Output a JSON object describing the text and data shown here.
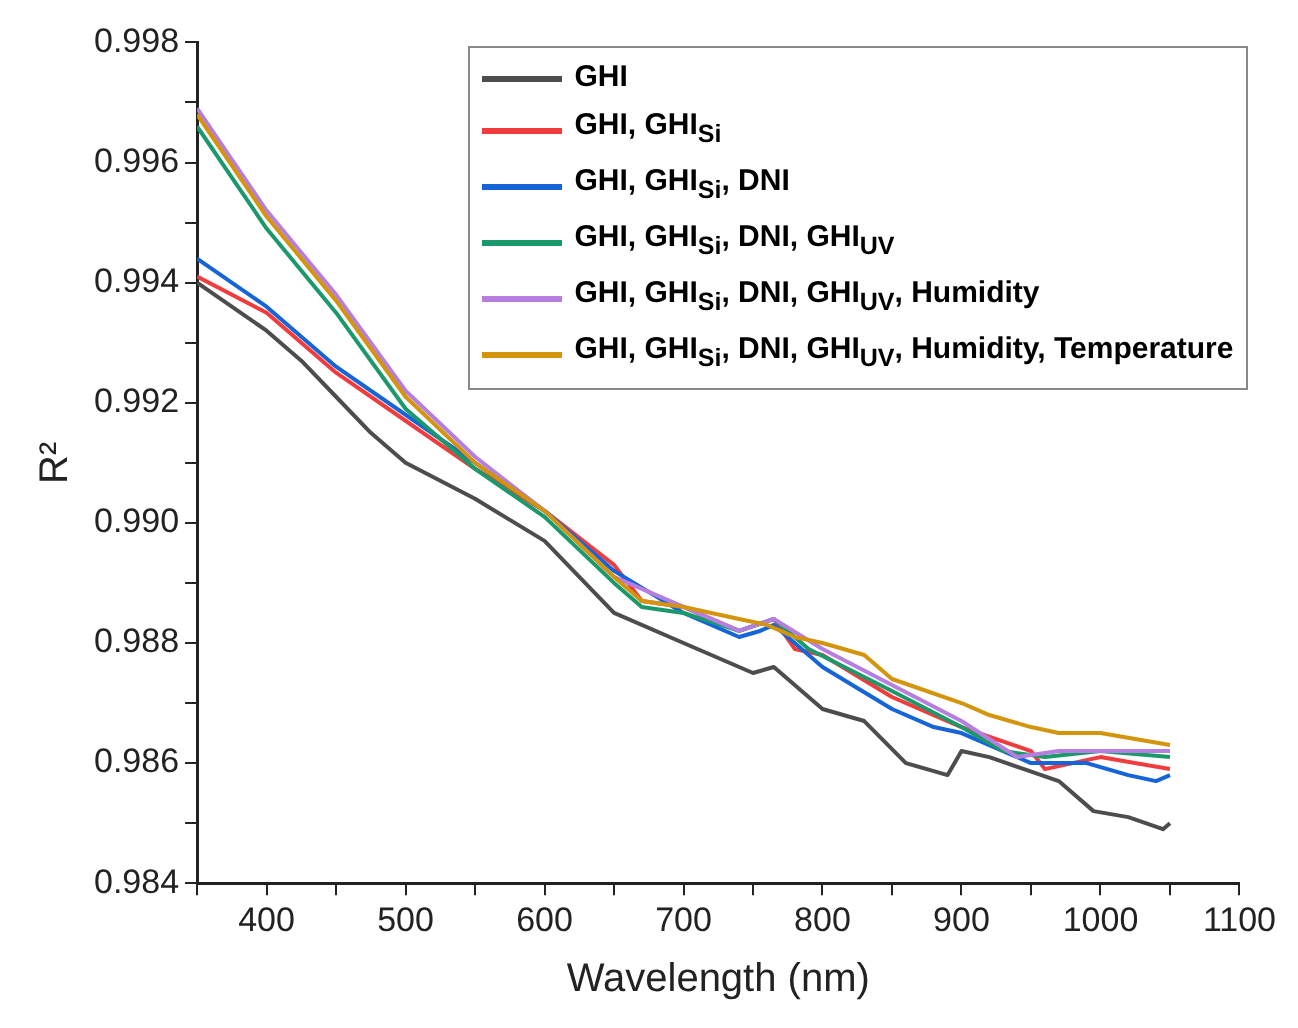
{
  "chart_data": {
    "type": "line",
    "xlabel": "Wavelength (nm)",
    "ylabel": "R²",
    "xlim": [
      350,
      1100
    ],
    "xticks": [
      {
        "value": 350,
        "label": null
      },
      400,
      {
        "value": 450,
        "label": null
      },
      500,
      {
        "value": 550,
        "label": null
      },
      600,
      {
        "value": 650,
        "label": null
      },
      700,
      {
        "value": 750,
        "label": null
      },
      800,
      {
        "value": 850,
        "label": null
      },
      900,
      {
        "value": 950,
        "label": null
      },
      1000,
      {
        "value": 1050,
        "label": null
      },
      1100
    ],
    "ylim": [
      0.984,
      0.998
    ],
    "yticks": [
      0.984,
      {
        "value": 0.985,
        "label": null
      },
      0.986,
      {
        "value": 0.987,
        "label": null
      },
      0.988,
      {
        "value": 0.989,
        "label": null
      },
      {
        "value": 0.99,
        "label": "0.990"
      },
      {
        "value": 0.991,
        "label": null
      },
      0.992,
      {
        "value": 0.993,
        "label": null
      },
      0.994,
      {
        "value": 0.995,
        "label": null
      },
      0.996,
      {
        "value": 0.997,
        "label": null
      },
      0.998
    ],
    "grid": false,
    "legend": "top right",
    "marker": "none",
    "line_style": "solid",
    "series": [
      {
        "name": "GHI",
        "color": "#4d4d4d",
        "x": [
          350,
          375,
          400,
          425,
          450,
          475,
          500,
          550,
          600,
          650,
          700,
          750,
          765,
          800,
          830,
          860,
          890,
          900,
          920,
          945,
          970,
          995,
          1020,
          1045,
          1050
        ],
        "values": [
          0.994,
          0.9936,
          0.9932,
          0.9927,
          0.9921,
          0.9915,
          0.991,
          0.9904,
          0.9897,
          0.9885,
          0.988,
          0.9875,
          0.9876,
          0.9869,
          0.9867,
          0.986,
          0.9858,
          0.9862,
          0.9861,
          0.9859,
          0.9857,
          0.9852,
          0.9851,
          0.9849,
          0.985
        ]
      },
      {
        "name": "GHI, GHI$_{Si}$",
        "color": "#f03c3c",
        "x": [
          350,
          400,
          450,
          500,
          550,
          600,
          650,
          670,
          700,
          740,
          765,
          780,
          800,
          850,
          880,
          900,
          950,
          960,
          1000,
          1050
        ],
        "values": [
          0.9941,
          0.9935,
          0.9925,
          0.9917,
          0.9909,
          0.9902,
          0.9893,
          0.9887,
          0.9886,
          0.9882,
          0.9884,
          0.9879,
          0.9878,
          0.9871,
          0.9868,
          0.9866,
          0.9862,
          0.9859,
          0.9861,
          0.9859
        ]
      },
      {
        "name": "GHI, GHI$_{Si}$, DNI",
        "color": "#1565d8",
        "x": [
          350,
          400,
          450,
          500,
          550,
          600,
          650,
          700,
          740,
          755,
          765,
          800,
          850,
          880,
          900,
          950,
          990,
          1020,
          1040,
          1050
        ],
        "values": [
          0.9944,
          0.9936,
          0.9926,
          0.9918,
          0.991,
          0.9902,
          0.9892,
          0.9885,
          0.9881,
          0.9882,
          0.9883,
          0.9876,
          0.9869,
          0.9866,
          0.9865,
          0.986,
          0.986,
          0.9858,
          0.9857,
          0.9858
        ]
      },
      {
        "name": "GHI, GHI$_{Si}$, DNI, GHI$_{UV}$",
        "color": "#1a9a6c",
        "x": [
          350,
          400,
          450,
          500,
          550,
          600,
          650,
          670,
          700,
          740,
          765,
          790,
          850,
          900,
          930,
          960,
          1000,
          1050
        ],
        "values": [
          0.9966,
          0.9949,
          0.9935,
          0.9919,
          0.9909,
          0.9901,
          0.989,
          0.9886,
          0.9885,
          0.9882,
          0.9884,
          0.9879,
          0.9872,
          0.9866,
          0.9862,
          0.9861,
          0.9862,
          0.9861
        ]
      },
      {
        "name": "GHI, GHI$_{Si}$, DNI, GHI$_{UV}$, Humidity",
        "color": "#b57ee0",
        "x": [
          350,
          400,
          450,
          500,
          550,
          600,
          650,
          700,
          740,
          765,
          800,
          850,
          900,
          940,
          970,
          1000,
          1050
        ],
        "values": [
          0.9969,
          0.9952,
          0.9938,
          0.9922,
          0.9911,
          0.9902,
          0.9891,
          0.9886,
          0.9882,
          0.9884,
          0.9879,
          0.9873,
          0.9867,
          0.9861,
          0.9862,
          0.9862,
          0.9862
        ]
      },
      {
        "name": "GHI, GHI$_{Si}$, DNI, GHI$_{UV}$, Humidity, Temperature",
        "color": "#d4950c",
        "x": [
          350,
          400,
          450,
          500,
          550,
          600,
          650,
          670,
          700,
          740,
          760,
          780,
          800,
          830,
          850,
          900,
          920,
          950,
          970,
          1000,
          1050
        ],
        "values": [
          0.9968,
          0.9951,
          0.9937,
          0.9921,
          0.991,
          0.9902,
          0.9891,
          0.9887,
          0.9886,
          0.9884,
          0.9883,
          0.9881,
          0.988,
          0.9878,
          0.9874,
          0.987,
          0.9868,
          0.9866,
          0.9865,
          0.9865,
          0.9863
        ]
      }
    ]
  }
}
